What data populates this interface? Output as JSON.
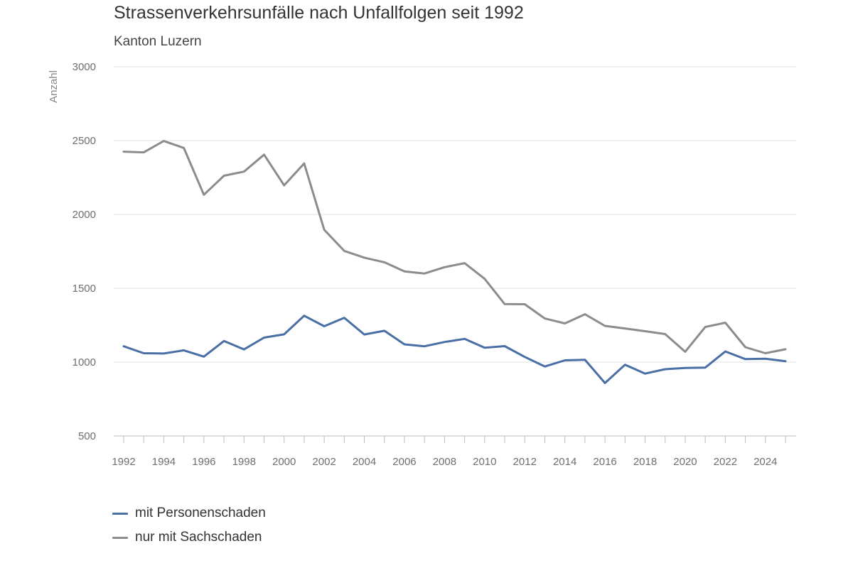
{
  "chart_data": {
    "type": "line",
    "title": "Strassenverkehrsunfälle nach Unfallfolgen seit 1992",
    "subtitle": "Kanton Luzern",
    "ylabel": "Anzahl",
    "xlabel": "",
    "ylim": [
      500,
      3000
    ],
    "yticks": [
      500,
      1000,
      1500,
      2000,
      2500,
      3000
    ],
    "xticks": [
      1992,
      1994,
      1996,
      1998,
      2000,
      2002,
      2004,
      2006,
      2008,
      2010,
      2012,
      2014,
      2016,
      2018,
      2020,
      2022,
      2024
    ],
    "grid": "horizontal",
    "legend_position": "bottom-left",
    "x": [
      1992,
      1993,
      1994,
      1995,
      1996,
      1997,
      1998,
      1999,
      2000,
      2001,
      2002,
      2003,
      2004,
      2005,
      2006,
      2007,
      2008,
      2009,
      2010,
      2011,
      2012,
      2013,
      2014,
      2015,
      2016,
      2017,
      2018,
      2019,
      2020,
      2021,
      2022,
      2023,
      2024,
      2025
    ],
    "series": [
      {
        "name": "mit Personenschaden",
        "color": "#4a6fa5",
        "values": [
          1107,
          1060,
          1058,
          1080,
          1037,
          1143,
          1086,
          1166,
          1188,
          1314,
          1243,
          1300,
          1187,
          1212,
          1120,
          1107,
          1136,
          1157,
          1097,
          1108,
          1035,
          970,
          1012,
          1016,
          858,
          982,
          922,
          952,
          960,
          963,
          1072,
          1020,
          1023,
          1006
        ]
      },
      {
        "name": "nur mit Sachschaden",
        "color": "#8c8c8c",
        "values": [
          2425,
          2420,
          2497,
          2450,
          2133,
          2262,
          2290,
          2405,
          2197,
          2345,
          1896,
          1753,
          1707,
          1676,
          1614,
          1600,
          1643,
          1670,
          1564,
          1393,
          1392,
          1295,
          1262,
          1324,
          1245,
          1228,
          1209,
          1190,
          1070,
          1238,
          1267,
          1101,
          1060,
          1087
        ]
      }
    ]
  }
}
